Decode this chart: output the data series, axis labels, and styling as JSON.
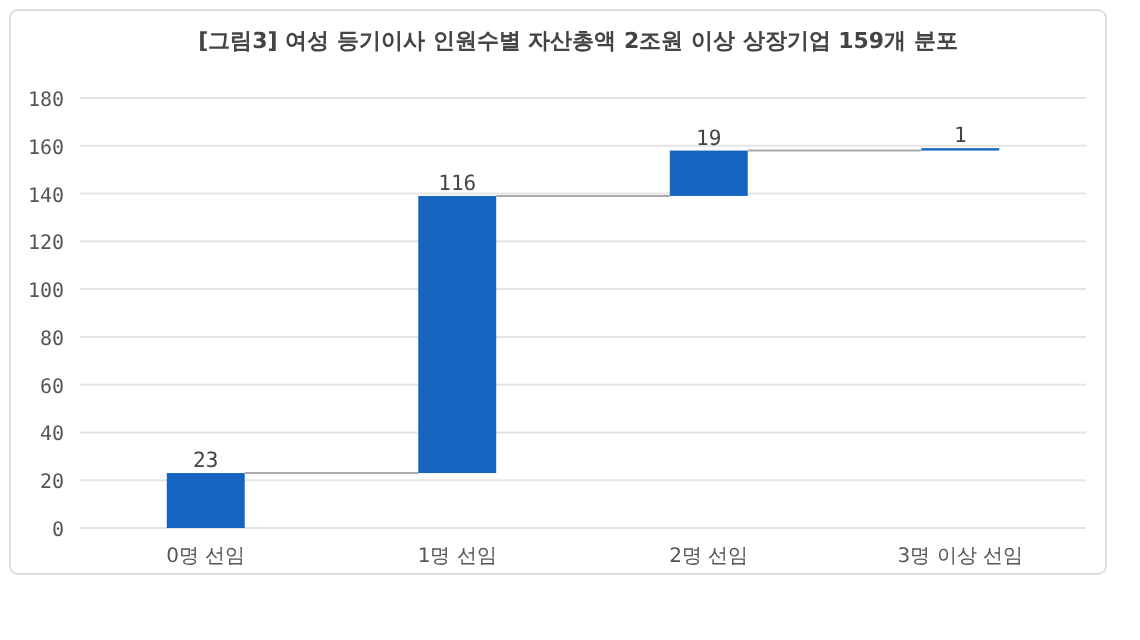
{
  "chart_data": {
    "type": "bar",
    "title": "[그림3] 여성 등기이사 인원수별 자산총액 2조원 이상 상장기업 159개 분포",
    "categories": [
      "0명 선임",
      "1명 선임",
      "2명 선임",
      "3명 이상 선임"
    ],
    "values": [
      23,
      116,
      19,
      1
    ],
    "base": [
      0,
      23,
      139,
      158
    ],
    "color": "#1565c0",
    "ylim": [
      0,
      180
    ],
    "yticks": [
      0,
      20,
      40,
      60,
      80,
      100,
      120,
      140,
      160,
      180
    ],
    "grid": "y",
    "data_labels": true
  }
}
